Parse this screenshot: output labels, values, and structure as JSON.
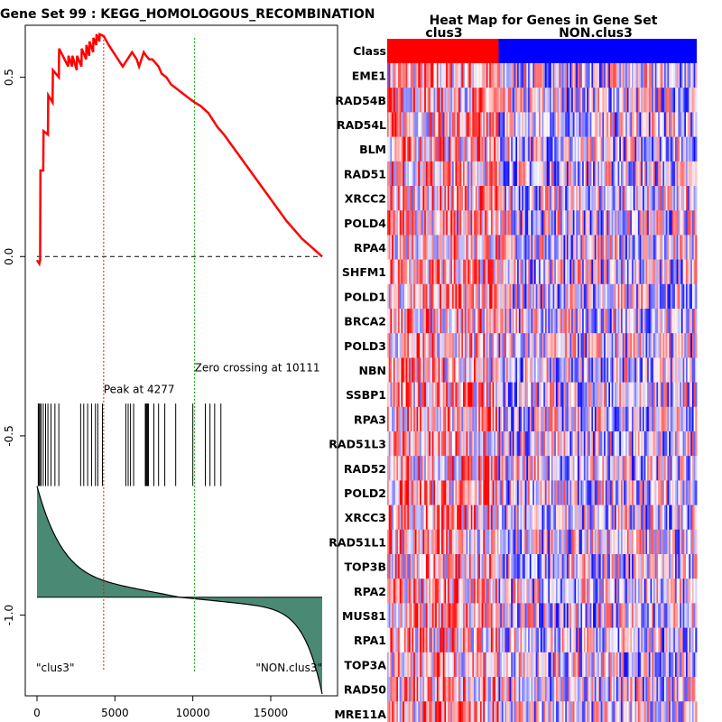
{
  "chart_data": [
    {
      "type": "line",
      "title": "Gene Set  99 : KEGG_HOMOLOGOUS_RECOMBINATION",
      "xlim": [
        0,
        18300
      ],
      "ylim": [
        -1.22,
        0.64
      ],
      "x_ticks": [
        0,
        5000,
        10000,
        15000
      ],
      "x_tick_labels": [
        "0",
        "5000",
        "10000",
        "15000"
      ],
      "y_ticks": [
        0.5,
        0.0,
        -0.5,
        -1.0
      ],
      "y_tick_labels": [
        "0.5",
        "0.0",
        "-0.5",
        "-1.0"
      ],
      "series": [
        {
          "x": [
            0,
            150,
            200,
            220,
            400,
            420,
            700,
            720,
            1000,
            1020,
            1400,
            1420,
            2000,
            2020,
            2250,
            2270,
            2550,
            2570,
            2850,
            2870,
            3150,
            3170,
            3350,
            3370,
            3600,
            3620,
            3800,
            3820,
            4000,
            4020,
            4277,
            4600,
            4900,
            5200,
            5500,
            5800,
            6100,
            6400,
            6550,
            6700,
            6850,
            7000,
            7200,
            7400,
            7600,
            7800,
            8000,
            8300,
            8600,
            8900,
            9200,
            9500,
            9800,
            10111,
            10500,
            11000,
            11300,
            11600,
            12000,
            12500,
            13000,
            14000,
            15000,
            16000,
            17000,
            18300
          ],
          "values": [
            -0.01,
            -0.02,
            -0.01,
            0.24,
            0.24,
            0.35,
            0.34,
            0.45,
            0.43,
            0.52,
            0.5,
            0.58,
            0.53,
            0.56,
            0.53,
            0.56,
            0.52,
            0.56,
            0.53,
            0.58,
            0.55,
            0.59,
            0.56,
            0.6,
            0.57,
            0.61,
            0.59,
            0.62,
            0.6,
            0.62,
            0.615,
            0.59,
            0.57,
            0.55,
            0.53,
            0.55,
            0.57,
            0.55,
            0.53,
            0.55,
            0.57,
            0.56,
            0.55,
            0.55,
            0.54,
            0.53,
            0.51,
            0.5,
            0.48,
            0.47,
            0.46,
            0.45,
            0.44,
            0.43,
            0.42,
            0.4,
            0.38,
            0.36,
            0.34,
            0.31,
            0.28,
            0.22,
            0.16,
            0.1,
            0.05,
            0.0
          ],
          "color": "#ff0000"
        }
      ],
      "hit_positions": [
        80,
        120,
        180,
        260,
        400,
        550,
        700,
        900,
        1150,
        1400,
        2800,
        3000,
        3250,
        3500,
        3750,
        3900,
        4200,
        5700,
        5850,
        6000,
        6200,
        6950,
        7000,
        7050,
        7100,
        7150,
        7500,
        7800,
        8200,
        8900,
        10000,
        10800,
        11100,
        11400,
        11800
      ],
      "peak_x": 4277,
      "peak_label": "Peak at 4277",
      "zero_crossing_x": 10111,
      "zero_crossing_label": "Zero crossing at 10111",
      "left_label": "\"clus3\"",
      "right_label": "\"NON.clus3\"",
      "fill_color": "#4a8a74",
      "peak_line_color": "#ff0000",
      "zero_line_color": "#00aa00"
    },
    {
      "type": "heatmap",
      "title": "Heat Map for Genes in Gene Set",
      "class_label": "Class",
      "classes": [
        {
          "name": "clus3",
          "fraction": 0.36,
          "color": "#ff0000"
        },
        {
          "name": "NON.clus3",
          "fraction": 0.64,
          "color": "#0000ff"
        }
      ],
      "genes": [
        "EME1",
        "RAD54B",
        "RAD54L",
        "BLM",
        "RAD51",
        "XRCC2",
        "POLD4",
        "RPA4",
        "SHFM1",
        "POLD1",
        "BRCA2",
        "POLD3",
        "NBN",
        "SSBP1",
        "RPA3",
        "RAD51L3",
        "RAD52",
        "POLD2",
        "XRCC3",
        "RAD51L1",
        "TOP3B",
        "RPA2",
        "MUS81",
        "RPA1",
        "TOP3A",
        "RAD50",
        "MRE11A"
      ],
      "columns": 200,
      "high_color": "#ff0000",
      "low_color": "#0000ff"
    }
  ]
}
